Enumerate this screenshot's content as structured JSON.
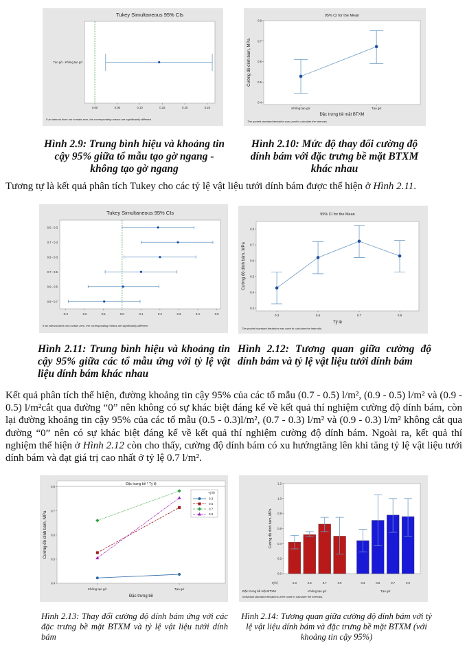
{
  "captions": {
    "fig_2_9": "Hình 2.9: Trung bình hiệu và khoảng tin cậy 95% giữa tổ mẫu tạo gờ ngang - không tạo gờ ngang",
    "fig_2_10": "Hình 2.10: Mức độ thay đổi cường độ dính bám với đặc trưng bề mặt BTXM khác nhau",
    "fig_2_11": "Hình 2.11: Trung bình hiệu và khoảng tin cậy 95% giữa các tổ mẫu ứng với tỷ lệ vật liệu dính bám khác nhau",
    "fig_2_12": "Hình 2.12: Tương quan giữa cường độ dính bám và tỷ lệ vật liệu tưới dính bám",
    "fig_2_13": "Hình 2.13: Thay đổi cường độ dính bám ứng với các đặc trưng bề mặt BTXM và tỷ lệ vật liệu tưới dính bám",
    "fig_2_14": "Hình 2.14: Tương quan giữa cường độ dính bám với tỷ lệ vật liệu dính bám và đặc trưng bề mặt BTXM (với khoảng tin cậy 95%)"
  },
  "paragraph_1": {
    "text": "Tương tự là kết quả phân tích Tukey cho các tỷ lệ vật liệu tưới dính bám được thể hiện ở ",
    "ref": "Hình 2.11",
    "end": "."
  },
  "paragraph_2": {
    "text": "Kết quả phân tích thể hiện, đường khoảng tin cậy 95% của các tổ mẫu (0.7 - 0.5) l/m², (0.9 - 0.5) l/m² và (0.9 - 0.5) l/m²cắt qua đường “0” nên không có sự khác biệt đáng kể về kết quả thí nghiệm cường độ dính bám, còn lại đường khoảng tin cậy 95% của các tổ mẫu (0.5 - 0.3)l/m², (0.7 - 0.3) l/m² và (0.9 - 0.3) l/m² không cắt qua đường “0” nên có sự khác biệt đáng kể về kết quả thí nghiệm cường độ dính bám. Ngoài ra, kết quả thí nghiệm thể hiện ở ",
    "ref": "Hình 2.12",
    "end": " còn cho thấy, cường độ dính bám có xu hướngtăng lên khi tăng tỷ lệ vật liệu tưới dính bám và đạt giá trị cao nhất ở tỷ lệ 0.7 l/m²."
  },
  "chart_data": [
    {
      "type": "tukey",
      "title": "Tukey Simultaneous 95% CIs",
      "categories": [
        "Tạo gờ - Không tạo gờ"
      ],
      "estimates": [
        0.143
      ],
      "lower": [
        0.024
      ],
      "upper": [
        0.261
      ],
      "xlim": [
        -0.023,
        0.267
      ],
      "x_ticks": [
        "0.00",
        "0.05",
        "0.10",
        "0.15",
        "0.20",
        "0.25"
      ],
      "reference_line": 0,
      "footnote": "If an interval does not contain zero, the corresponding means are significantly different.",
      "colors": {
        "interval": "#6a9ac4",
        "point": "#1f4e9a",
        "reference": "#3fa34d"
      }
    },
    {
      "type": "line",
      "title": "95% CI for the Mean",
      "categories": [
        "Không tạo gờ",
        "Tạo gờ"
      ],
      "values": [
        0.528,
        0.673
      ],
      "lower": [
        0.445,
        0.59
      ],
      "upper": [
        0.61,
        0.752
      ],
      "ylim": [
        0.39,
        0.8
      ],
      "y_ticks": [
        "0.4",
        "0.5",
        "0.6",
        "0.7",
        "0.8"
      ],
      "xlabel": "Đặc trưng bề mặt BTXM",
      "ylabel": "Cường độ dính bám, MPa",
      "footnote": "The pooled standard deviation was used to calculate the intervals.",
      "colors": {
        "line": "#6a9ac4",
        "point": "#1f4e9a"
      }
    },
    {
      "type": "tukey",
      "title": "Tukey Simultaneous 95% CIs",
      "categories": [
        "0.5 - 0.3",
        "0.7 - 0.3",
        "0.9 - 0.3",
        "0.7 - 0.5",
        "0.9 - 0.5",
        "0.9 - 0.7"
      ],
      "estimates": [
        0.19,
        0.295,
        0.2,
        0.1,
        0.005,
        -0.095
      ],
      "lower": [
        0.0,
        0.1,
        0.01,
        -0.09,
        -0.18,
        -0.285
      ],
      "upper": [
        0.38,
        0.48,
        0.39,
        0.29,
        0.195,
        0.095
      ],
      "xlim": [
        -0.33,
        0.52
      ],
      "x_ticks": [
        "-0.3",
        "-0.2",
        "-0.1",
        "0.0",
        "0.1",
        "0.2",
        "0.3",
        "0.4",
        "0.5"
      ],
      "reference_line": 0,
      "footnote": "If an interval does not contain zero, the corresponding means are significantly different.",
      "colors": {
        "interval": "#6a9ac4",
        "point": "#1f4e9a",
        "reference": "#3fa34d"
      }
    },
    {
      "type": "line",
      "title": "95% CI for the Mean",
      "categories": [
        "0.3",
        "0.5",
        "0.7",
        "0.9"
      ],
      "values": [
        0.428,
        0.62,
        0.723,
        0.63
      ],
      "lower": [
        0.327,
        0.518,
        0.62,
        0.528
      ],
      "upper": [
        0.528,
        0.72,
        0.823,
        0.728
      ],
      "ylim": [
        0.283,
        0.848
      ],
      "y_ticks": [
        "0.3",
        "0.4",
        "0.5",
        "0.6",
        "0.7",
        "0.8"
      ],
      "xlabel": "Tỷ lệ",
      "ylabel": "Cường độ dính bám, MPa",
      "footnote": "The pooled standard deviation was used to calculate the intervals.",
      "colors": {
        "line": "#6a9ac4",
        "point": "#1f4e9a"
      }
    },
    {
      "type": "line",
      "title": "Đặc trưng bề * Tỷ lệ",
      "categories": [
        "Không tạo gờ",
        "Tạo gờ"
      ],
      "legend_title": "Tỷ lệ",
      "legend_position": "top-right",
      "series": [
        {
          "name": "0.3",
          "values": [
            0.422,
            0.437
          ],
          "color": "#2b68a8",
          "style": "solid",
          "marker": "circle"
        },
        {
          "name": "0.5",
          "values": [
            0.527,
            0.714
          ],
          "color": "#a01818",
          "style": "dashed",
          "marker": "square"
        },
        {
          "name": "0.7",
          "values": [
            0.66,
            0.783
          ],
          "color": "#2e9e3a",
          "style": "dotted",
          "marker": "diamond"
        },
        {
          "name": "0.9",
          "values": [
            0.505,
            0.754
          ],
          "color": "#a020c0",
          "style": "dash-dot",
          "marker": "triangle"
        }
      ],
      "ylim": [
        0.4,
        0.802
      ],
      "y_ticks": [
        "0.4",
        "0.5",
        "0.6",
        "0.7",
        "0.8"
      ],
      "xlabel": "Đặc trưng bề",
      "ylabel": "Cường độ dính bám, MPa"
    },
    {
      "type": "bar",
      "groups": [
        {
          "name": "Không tạo gờ",
          "color": "#c01a1a",
          "categories": [
            "0.3",
            "0.5",
            "0.7",
            "0.9"
          ],
          "values": [
            0.42,
            0.52,
            0.66,
            0.5
          ],
          "lower": [
            0.33,
            0.49,
            0.56,
            0.26
          ],
          "upper": [
            0.51,
            0.56,
            0.75,
            0.75
          ]
        },
        {
          "name": "Tạo gờ",
          "color": "#1a1ae0",
          "categories": [
            "0.3",
            "0.5",
            "0.7",
            "0.9"
          ],
          "values": [
            0.44,
            0.71,
            0.78,
            0.76
          ],
          "lower": [
            0.29,
            0.37,
            0.55,
            0.5
          ],
          "upper": [
            0.59,
            1.05,
            1.0,
            1.0
          ]
        }
      ],
      "ylim": [
        0,
        1.2
      ],
      "y_ticks": [
        "0.0",
        "0.2",
        "0.4",
        "0.6",
        "0.8",
        "1.0",
        "1.2"
      ],
      "category_row_label": "Tỷ lệ",
      "group_row_label": "Đặc trưng bề mặt BTXM",
      "ylabel": "Cường độ dính bám, MPa",
      "footnote": "Individual standard deviations were used to calculate the intervals.",
      "colors": {
        "error_bar": "#6a9ac4"
      }
    }
  ]
}
